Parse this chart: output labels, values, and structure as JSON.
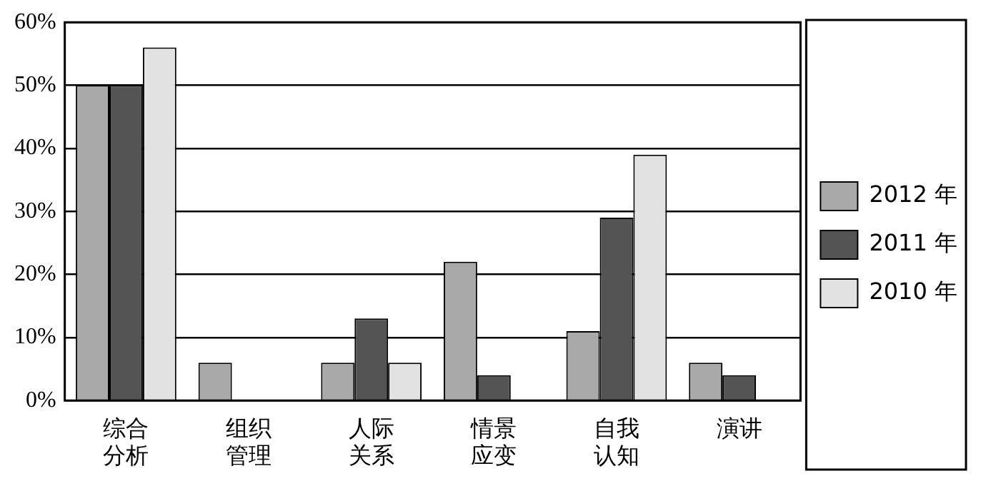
{
  "chart_data": {
    "type": "bar",
    "categories": [
      "综合分析",
      "组织管理",
      "人际关系",
      "情景应变",
      "自我认知",
      "演讲"
    ],
    "series": [
      {
        "name": "2012 年",
        "color": "#a9a9a9",
        "values": [
          50,
          6,
          6,
          22,
          11,
          6
        ]
      },
      {
        "name": "2011 年",
        "color": "#545454",
        "values": [
          50,
          null,
          13,
          4,
          29,
          4
        ]
      },
      {
        "name": "2010 年",
        "color": "#e2e2e2",
        "values": [
          56,
          null,
          6,
          null,
          39,
          null
        ]
      }
    ],
    "ylim": [
      0,
      60
    ],
    "yticks": [
      {
        "value": 0,
        "label": "0%"
      },
      {
        "value": 10,
        "label": "10%"
      },
      {
        "value": 20,
        "label": "20%"
      },
      {
        "value": 30,
        "label": "30%"
      },
      {
        "value": 40,
        "label": "40%"
      },
      {
        "value": 50,
        "label": "50%"
      },
      {
        "value": 60,
        "label": "60%"
      }
    ],
    "grid": "y",
    "legend": "right"
  }
}
